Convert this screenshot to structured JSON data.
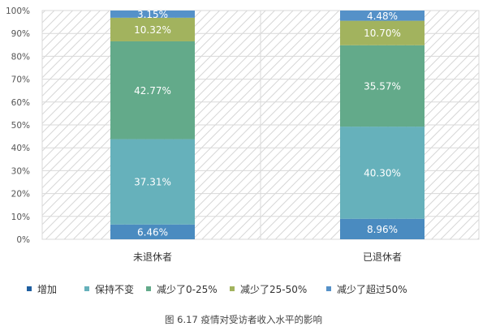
{
  "chart_data": {
    "type": "bar",
    "stacked": true,
    "title": "图 6.17 疫情对受访者收入水平的影响",
    "categories": [
      "未退休者",
      "已退休者"
    ],
    "series": [
      {
        "name": "增加",
        "values": [
          6.46,
          8.96
        ],
        "color": "#4a8bc0",
        "legend_color": "#1f5fa0"
      },
      {
        "name": "保持不变",
        "values": [
          37.31,
          40.3
        ],
        "color": "#66b1bb",
        "legend_color": "#66b1bb"
      },
      {
        "name": "减少了0-25%",
        "values": [
          42.77,
          35.57
        ],
        "color": "#63aa8a",
        "legend_color": "#63aa8a"
      },
      {
        "name": "减少了25-50%",
        "values": [
          10.32,
          10.7
        ],
        "color": "#a2b35e",
        "legend_color": "#a2b35e"
      },
      {
        "name": "减少了超过50%",
        "values": [
          3.15,
          4.48
        ],
        "color": "#5591c8",
        "legend_color": "#5591c8"
      }
    ],
    "ylim": [
      0,
      100
    ],
    "yticks": [
      "0%",
      "10%",
      "20%",
      "30%",
      "40%",
      "50%",
      "60%",
      "70%",
      "80%",
      "90%",
      "100%"
    ],
    "grid": true,
    "legend_position": "bottom"
  }
}
